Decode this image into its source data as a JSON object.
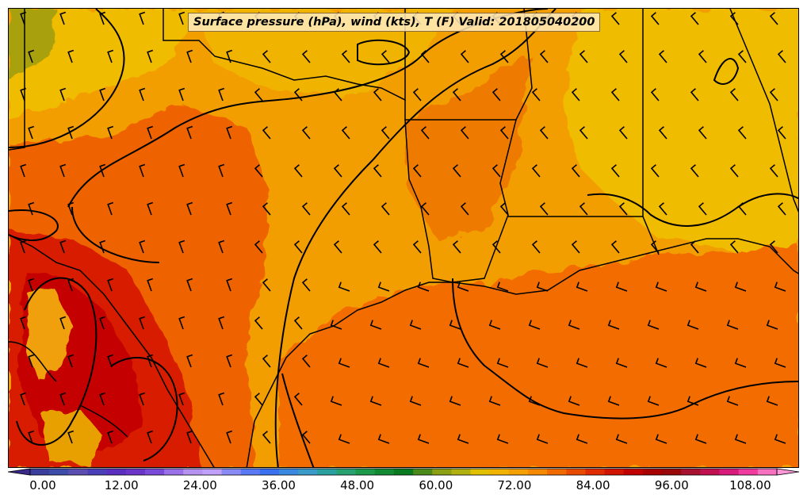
{
  "title": "Surface pressure (hPa), wind (kts), T (F) Valid: 201805040200",
  "colorbar": {
    "min": 0,
    "max": 114,
    "step": 3,
    "tick_labels": [
      "0.00",
      "12.00",
      "24.00",
      "36.00",
      "48.00",
      "60.00",
      "72.00",
      "84.00",
      "96.00",
      "108.00"
    ],
    "colors": [
      "#3a2a8a",
      "#3b3d9c",
      "#3d4ca8",
      "#5a4fb0",
      "#4a3fb8",
      "#5a2fc0",
      "#6a35c8",
      "#7a4ad8",
      "#9a70e8",
      "#b592f0",
      "#c0a0f8",
      "#8a8af5",
      "#5a7af5",
      "#3a70f0",
      "#3a88e0",
      "#3a9ac8",
      "#2aa0a0",
      "#28a070",
      "#1c9a4a",
      "#118a32",
      "#0a7a20",
      "#4a8a1a",
      "#8aa012",
      "#b0b010",
      "#e0c000",
      "#f0b400",
      "#f3a000",
      "#f58a00",
      "#f06a00",
      "#e84a00",
      "#e02a00",
      "#d01400",
      "#c00000",
      "#a80000",
      "#980808",
      "#a81030",
      "#c01050",
      "#d81a7a",
      "#f03aa0",
      "#f870c0",
      "#ff98d8"
    ]
  },
  "legend_lines": {
    "isobars": "Surface pressure (hPa)",
    "barbs": "wind (kts)",
    "fill": "T (F)"
  },
  "palette": {
    "gulf_warm": "#f26c00",
    "land_orange": "#f39e00",
    "land_yellow": "#f0bc00",
    "hot_red": "#d81e00",
    "very_hot": "#c40000",
    "cool_olive": "#a8a010"
  }
}
